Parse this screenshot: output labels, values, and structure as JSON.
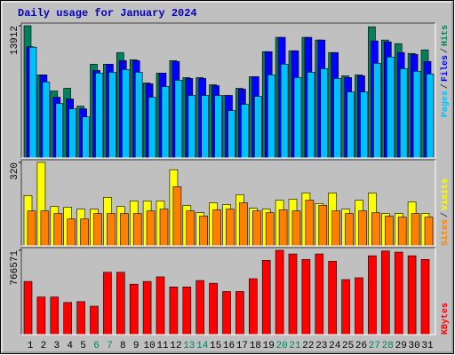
{
  "title": "Daily usage for January 2024",
  "legend_separator": "/",
  "chart_data": [
    {
      "type": "bar",
      "ylim": [
        0,
        13912
      ],
      "yticks": [
        13912
      ],
      "series": [
        {
          "name": "Pages",
          "color": "#00c0ff",
          "values": [
            11656,
            7990,
            5734,
            5170,
            4324,
            8930,
            9024,
            9306,
            9024,
            6392,
            7520,
            8178,
            6580,
            6580,
            6580,
            4982,
            5640,
            6486,
            8742,
            9870,
            8460,
            9024,
            9400,
            8366,
            6956,
            6956,
            9964,
            10622,
            9400,
            9118,
            8836
          ]
        },
        {
          "name": "Files",
          "color": "#0000ff",
          "values": [
            11700,
            8742,
            6392,
            6204,
            5170,
            9212,
            9870,
            10246,
            10246,
            7802,
            8930,
            10152,
            8366,
            8366,
            7614,
            6580,
            7238,
            8554,
            11186,
            12690,
            11280,
            12690,
            12408,
            11092,
            8460,
            8648,
            12314,
            12220,
            11092,
            10904,
            10152
          ]
        },
        {
          "name": "Hits",
          "color": "#00805c",
          "values": [
            13912,
            8742,
            7050,
            7332,
            5452,
            9870,
            9870,
            11092,
            10340,
            7896,
            8930,
            10246,
            8460,
            8460,
            7708,
            6580,
            7332,
            8554,
            11186,
            12690,
            11280,
            12690,
            12408,
            11092,
            8648,
            8742,
            13800,
            12408,
            12032,
            10998,
            11374
          ]
        }
      ]
    },
    {
      "type": "bar",
      "ylim": [
        0,
        320
      ],
      "yticks": [
        320
      ],
      "series": [
        {
          "name": "Sites",
          "color": "#ff8000",
          "values": [
            134,
            134,
            124,
            103,
            103,
            124,
            124,
            124,
            124,
            134,
            141,
            227,
            134,
            114,
            138,
            141,
            165,
            134,
            127,
            138,
            134,
            175,
            155,
            134,
            124,
            134,
            127,
            114,
            110,
            124,
            110
          ]
        },
        {
          "name": "Visits",
          "color": "#ffff00",
          "values": [
            193,
            320,
            151,
            148,
            141,
            141,
            186,
            151,
            172,
            172,
            172,
            292,
            155,
            127,
            165,
            158,
            196,
            144,
            141,
            175,
            179,
            203,
            162,
            203,
            141,
            175,
            203,
            124,
            124,
            169,
            124
          ]
        }
      ]
    },
    {
      "type": "bar",
      "ylim": [
        0,
        766571
      ],
      "yticks": [
        766571
      ],
      "categories": [
        "1",
        "2",
        "3",
        "4",
        "5",
        "6",
        "7",
        "8",
        "9",
        "10",
        "11",
        "12",
        "13",
        "14",
        "15",
        "16",
        "17",
        "18",
        "19",
        "20",
        "21",
        "22",
        "23",
        "24",
        "25",
        "26",
        "27",
        "28",
        "29",
        "30",
        "31"
      ],
      "category_colors": [
        "#000000",
        "#000000",
        "#000000",
        "#000000",
        "#000000",
        "#00805c",
        "#00805c",
        "#000000",
        "#000000",
        "#000000",
        "#000000",
        "#000000",
        "#00805c",
        "#00805c",
        "#000000",
        "#000000",
        "#000000",
        "#000000",
        "#000000",
        "#00805c",
        "#00805c",
        "#000000",
        "#000000",
        "#000000",
        "#000000",
        "#000000",
        "#00805c",
        "#00805c",
        "#000000",
        "#000000",
        "#000000"
      ],
      "series": [
        {
          "name": "KBytes",
          "color": "#ff0000",
          "values": [
            483256,
            341612,
            341612,
            291620,
            299952,
            258292,
            566576,
            566576,
            458260,
            483256,
            524916,
            433264,
            433264,
            491588,
            466592,
            391604,
            391604,
            508252,
            674892,
            766571,
            733216,
            683224,
            733216,
            666560,
            499920,
            516584,
            716552,
            760000,
            749880,
            716552,
            683224
          ]
        }
      ]
    }
  ]
}
